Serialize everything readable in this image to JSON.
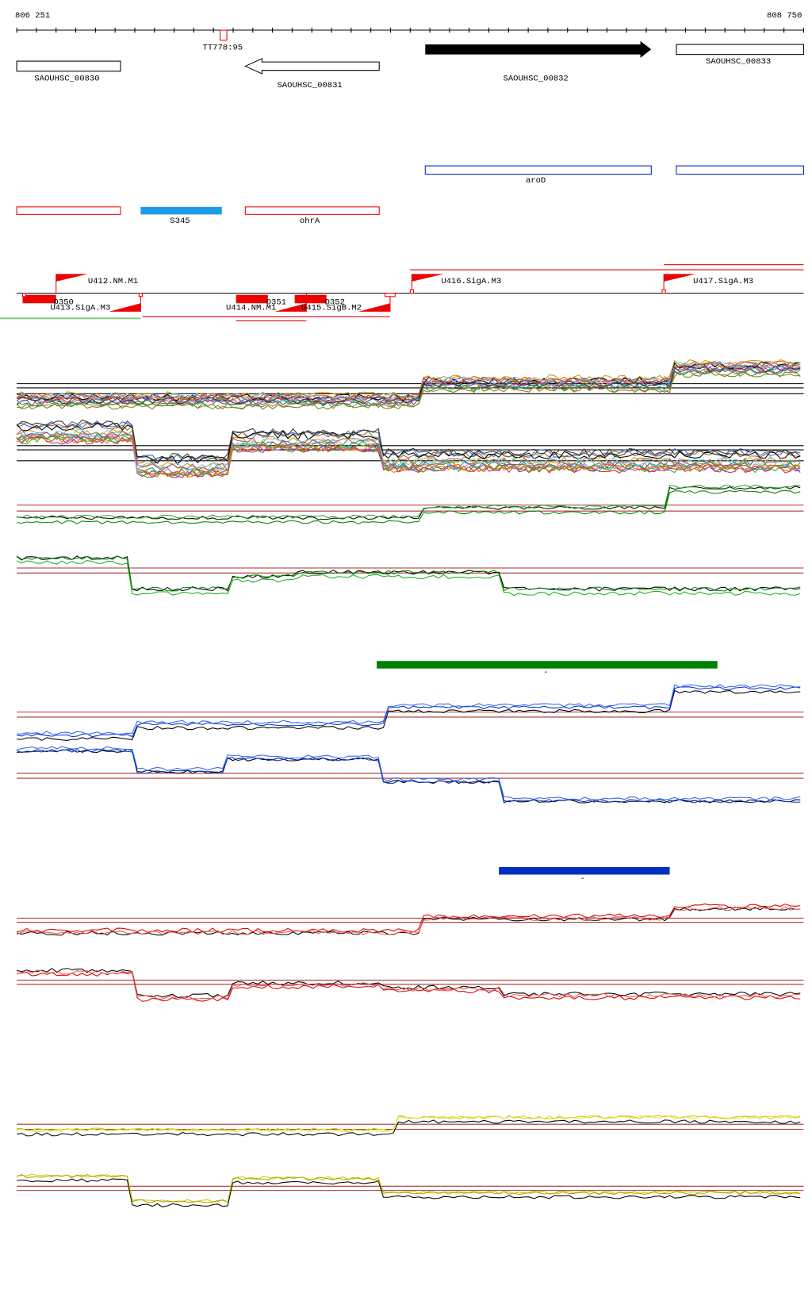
{
  "ruler": {
    "start": "806 251",
    "end": "808 750"
  },
  "terminator": "TT778:95",
  "genes": [
    "SAOUHSC_00830",
    "SAOUHSC_00831",
    "SAOUHSC_00832",
    "SAOUHSC_00833"
  ],
  "operon": "aroD",
  "rnas": [
    "S345",
    "ohrA"
  ],
  "promoters_forward": [
    "U412.NM.M1",
    "U416.SigA.M3",
    "U417.SigA.M3"
  ],
  "promoters_reverse": [
    "U413.SigA.M3",
    "U414.NM.M1",
    "U415.SigB.M2"
  ],
  "downstream": [
    "D350",
    "D351",
    "D352"
  ],
  "markers": [
    "-",
    "-"
  ]
}
